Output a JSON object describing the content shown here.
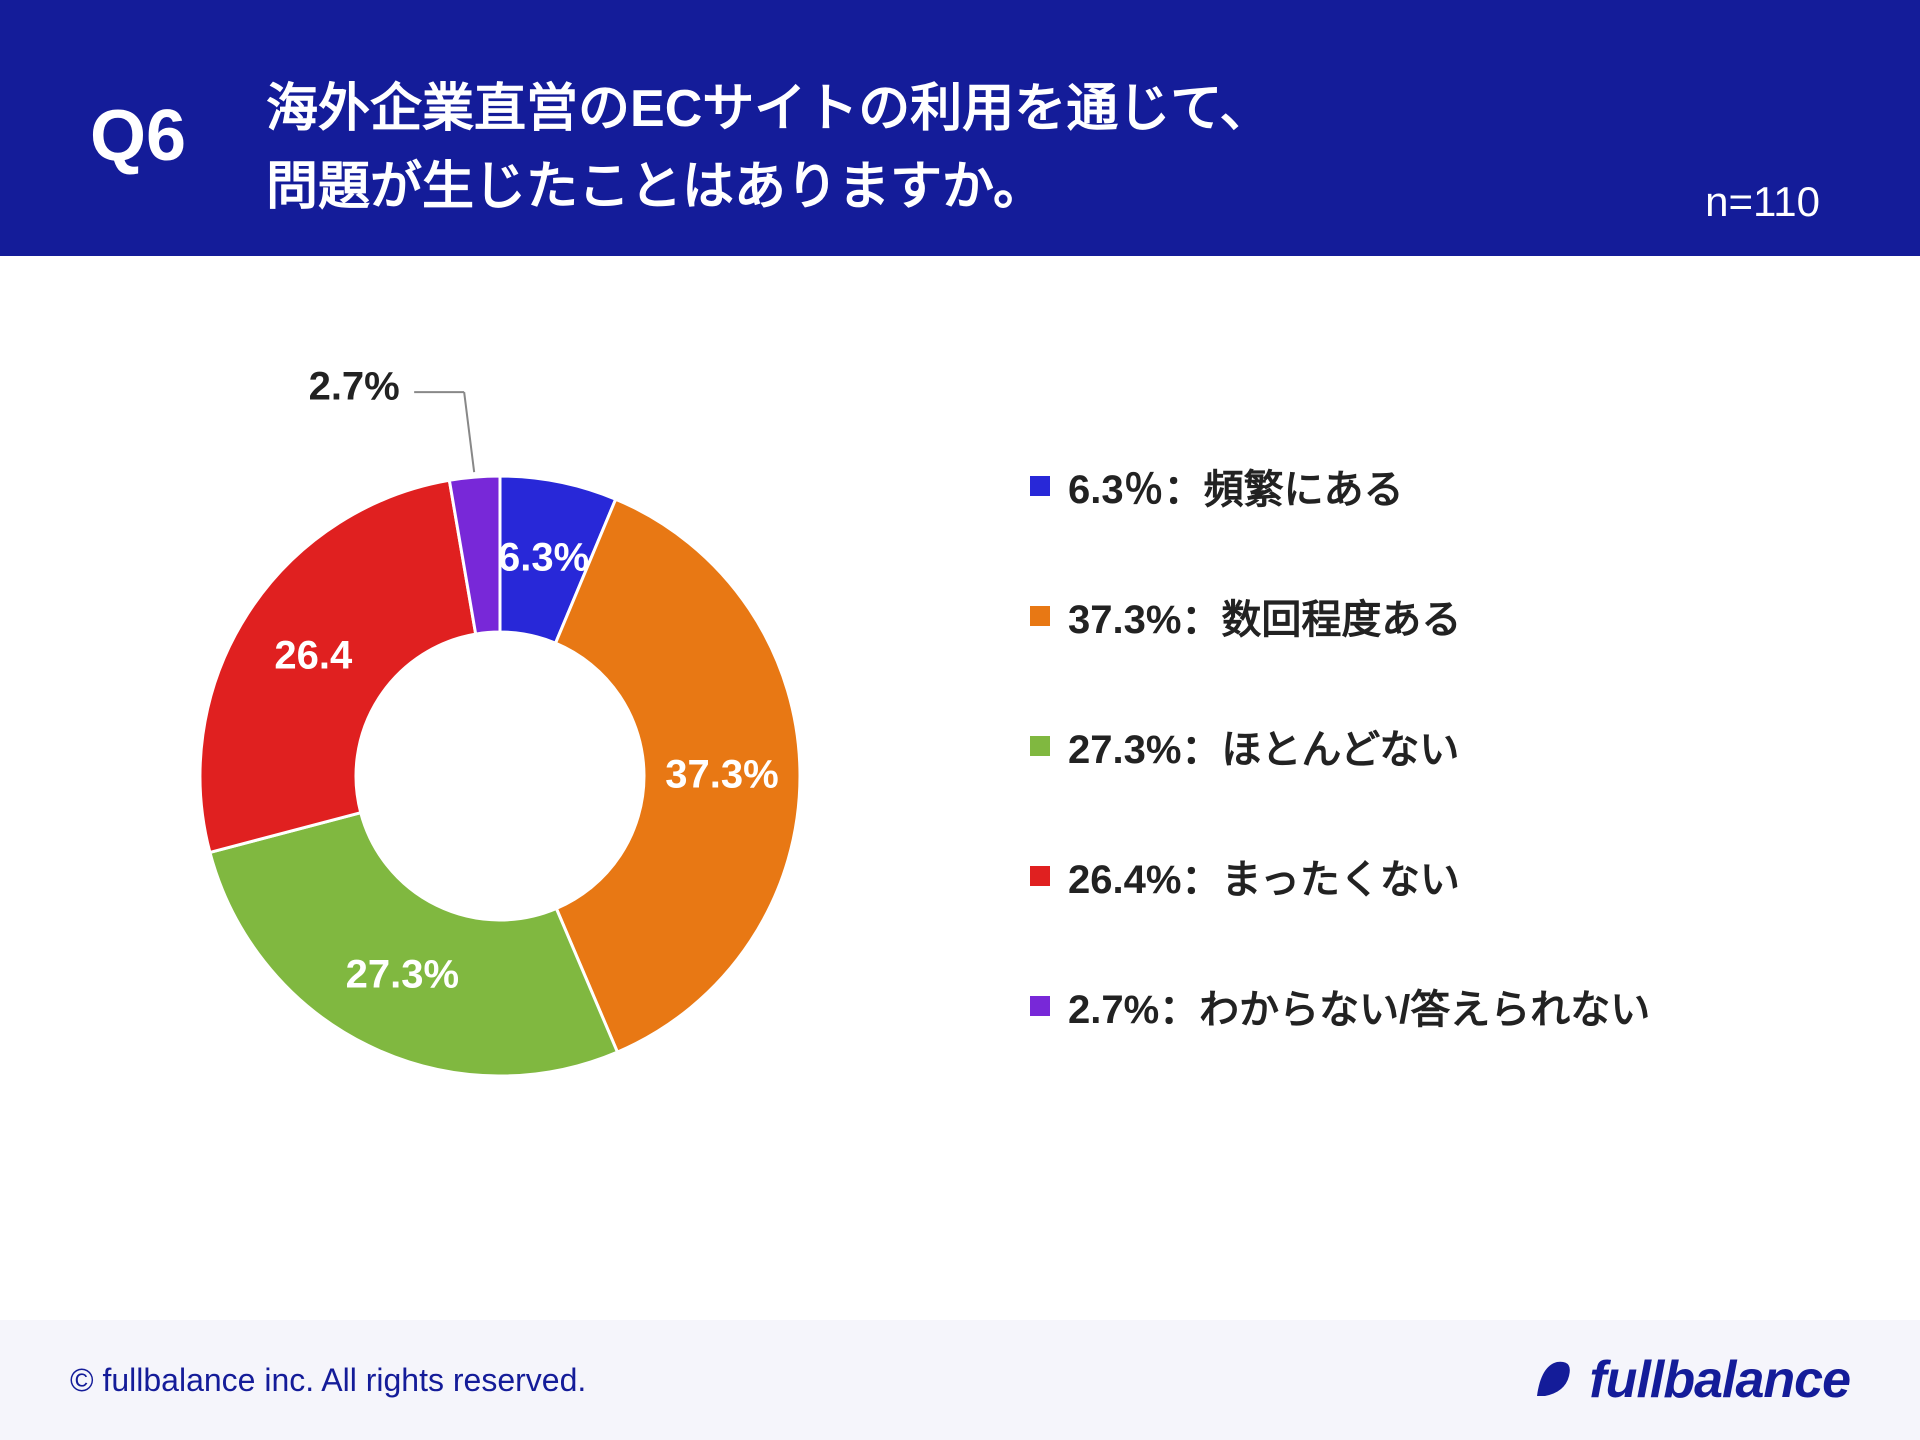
{
  "header": {
    "question_number": "Q6",
    "question_title_line1": "海外企業直営のECサイトの利用を通じて、",
    "question_title_line2": "問題が生じたことはありますか。",
    "n_label": "n=110",
    "background_color": "#141c99",
    "text_color": "#ffffff"
  },
  "chart": {
    "type": "donut",
    "inner_radius_ratio": 0.48,
    "slices": [
      {
        "value": 6.3,
        "label": "6.3%",
        "color": "#2828d8",
        "legend": "6.3％：頻繁にある"
      },
      {
        "value": 37.3,
        "label": "37.3%",
        "color": "#e87814",
        "legend": "37.3%：数回程度ある"
      },
      {
        "value": 27.3,
        "label": "27.3%",
        "color": "#80b840",
        "legend": "27.3%：ほとんどない"
      },
      {
        "value": 26.4,
        "label": "26.4",
        "color": "#e02020",
        "legend": "26.4%：まったくない"
      },
      {
        "value": 2.7,
        "label": "2.7%",
        "color": "#7828d8",
        "legend": "2.7%：わからない/答えられない"
      }
    ],
    "label_fontsize": 40,
    "label_color_on_slice": "#ffffff",
    "callout_label_color": "#222222",
    "callout_line_color": "#888888",
    "background_color": "#ffffff"
  },
  "legend": {
    "fontsize": 40,
    "swatch_size": 20,
    "text_color": "#222222"
  },
  "footer": {
    "copyright": "© fullbalance inc. All rights reserved.",
    "brand": "fullbalance",
    "background_color": "#f5f5fb",
    "text_color": "#141c99"
  }
}
